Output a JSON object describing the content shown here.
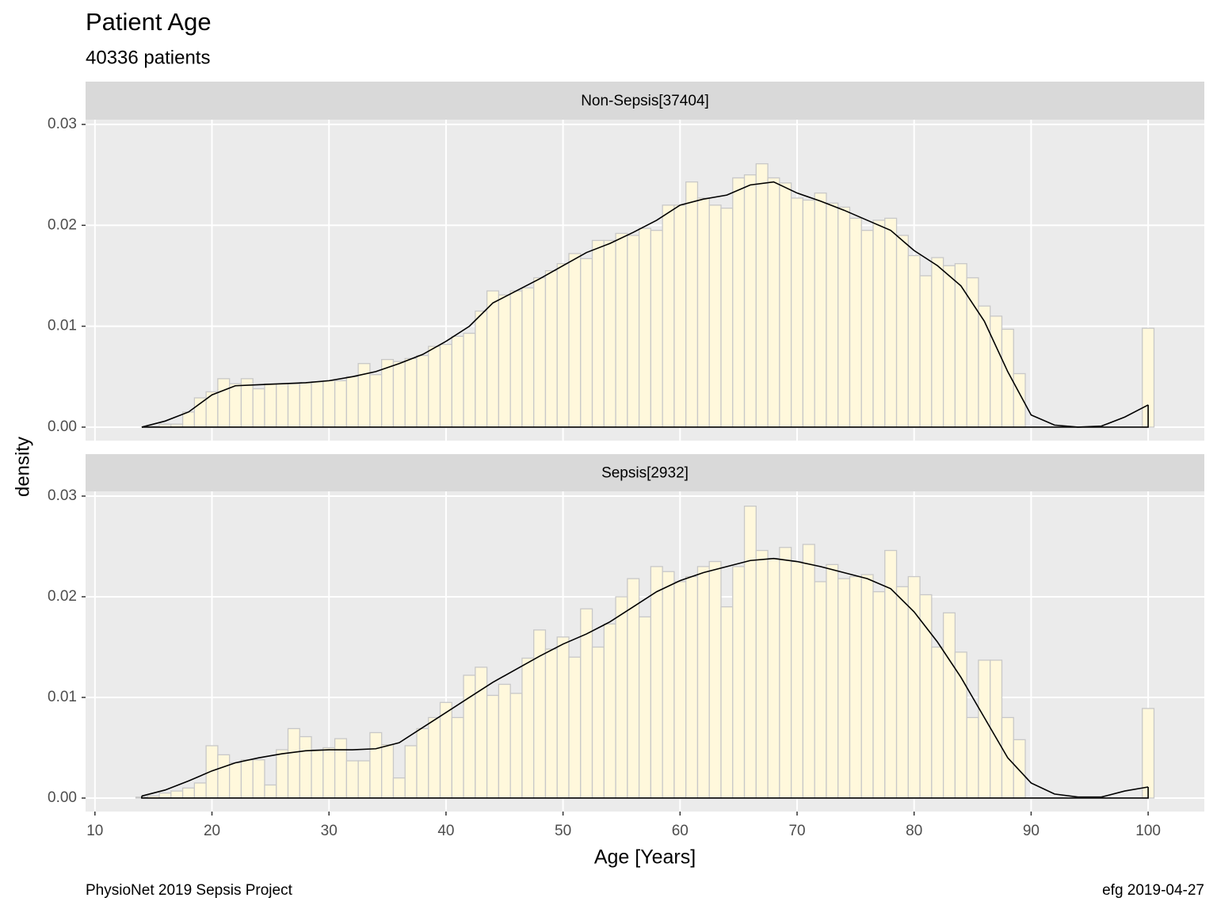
{
  "title": "Patient Age",
  "subtitle": "40336 patients",
  "ylabel": "density",
  "xlabel": "Age [Years]",
  "caption_left": "PhysioNet 2019 Sepsis Project",
  "caption_right": "efg 2019-04-27",
  "chart_data": [
    {
      "type": "histogram",
      "title": "Non-Sepsis[37404]",
      "color": "#FFF8DC",
      "edgecolor": "#C8C8C8",
      "grid": true,
      "bins": [
        13.5,
        14.5,
        15.5,
        16.5,
        17.5,
        18.5,
        19.5,
        20.5,
        21.5,
        22.5,
        23.5,
        24.5,
        25.5,
        26.5,
        27.5,
        28.5,
        29.5,
        30.5,
        31.5,
        32.5,
        33.5,
        34.5,
        35.5,
        36.5,
        37.5,
        38.5,
        39.5,
        40.5,
        41.5,
        42.5,
        43.5,
        44.5,
        45.5,
        46.5,
        47.5,
        48.5,
        49.5,
        50.5,
        51.5,
        52.5,
        53.5,
        54.5,
        55.5,
        56.5,
        57.5,
        58.5,
        59.5,
        60.5,
        61.5,
        62.5,
        63.5,
        64.5,
        65.5,
        66.5,
        67.5,
        68.5,
        69.5,
        70.5,
        71.5,
        72.5,
        73.5,
        74.5,
        75.5,
        76.5,
        77.5,
        78.5,
        79.5,
        80.5,
        81.5,
        82.5,
        83.5,
        84.5,
        85.5,
        86.5,
        87.5,
        88.5,
        89.5,
        90.5,
        91.5,
        92.5,
        93.5,
        94.5,
        95.5,
        96.5,
        97.5,
        98.5,
        99.5,
        100.5
      ],
      "values": [
        0,
        0.0001,
        0.0003,
        0.0003,
        0.0015,
        0.0029,
        0.0035,
        0.0048,
        0.0043,
        0.0048,
        0.0038,
        0.0043,
        0.0043,
        0.0043,
        0.0044,
        0.0045,
        0.0046,
        0.0046,
        0.005,
        0.0063,
        0.0052,
        0.0067,
        0.0065,
        0.0068,
        0.0071,
        0.008,
        0.0082,
        0.009,
        0.0093,
        0.0115,
        0.0135,
        0.0131,
        0.0135,
        0.0138,
        0.0148,
        0.0155,
        0.0162,
        0.0172,
        0.0167,
        0.0185,
        0.0185,
        0.0192,
        0.019,
        0.0197,
        0.0195,
        0.022,
        0.022,
        0.0243,
        0.0227,
        0.022,
        0.0217,
        0.0247,
        0.025,
        0.0261,
        0.0247,
        0.0242,
        0.0227,
        0.0225,
        0.0232,
        0.0222,
        0.0218,
        0.0207,
        0.0195,
        0.0205,
        0.0207,
        0.019,
        0.017,
        0.015,
        0.0168,
        0.016,
        0.0162,
        0.0148,
        0.012,
        0.011,
        0.0097,
        0.0053,
        0,
        0,
        0,
        0,
        0,
        0,
        0,
        0,
        0,
        0,
        0.0098
      ],
      "density": {
        "color": "#000000",
        "x": [
          14,
          16,
          18,
          20,
          22,
          24,
          26,
          28,
          30,
          32,
          34,
          36,
          38,
          40,
          42,
          44,
          46,
          48,
          50,
          52,
          54,
          56,
          58,
          60,
          62,
          64,
          66,
          68,
          70,
          72,
          74,
          76,
          78,
          80,
          82,
          84,
          86,
          88,
          90,
          92,
          94,
          96,
          98,
          100
        ],
        "values": [
          0,
          0.0006,
          0.0015,
          0.0032,
          0.0041,
          0.0042,
          0.0043,
          0.0044,
          0.0046,
          0.005,
          0.0055,
          0.0063,
          0.0072,
          0.0085,
          0.01,
          0.0123,
          0.0135,
          0.0147,
          0.016,
          0.0173,
          0.0182,
          0.0193,
          0.0205,
          0.022,
          0.0226,
          0.023,
          0.024,
          0.0243,
          0.0232,
          0.0224,
          0.0215,
          0.0205,
          0.0195,
          0.0175,
          0.016,
          0.014,
          0.0105,
          0.0055,
          0.0012,
          0.0002,
          0,
          0.0001,
          0.001,
          0.0022
        ]
      },
      "xlim": [
        9.2,
        104.8
      ],
      "xticks": [
        10,
        20,
        30,
        40,
        50,
        60,
        70,
        80,
        90,
        100
      ],
      "ylim": [
        -0.00134,
        0.03047
      ],
      "yticks": [
        {
          "value": 0,
          "label": "0.00"
        },
        {
          "value": 0.01,
          "label": "0.01"
        },
        {
          "value": 0.02,
          "label": "0.02"
        },
        {
          "value": 0.03,
          "label": "0.03"
        }
      ]
    },
    {
      "type": "histogram",
      "title": "Sepsis[2932]",
      "color": "#FFF8DC",
      "edgecolor": "#C8C8C8",
      "grid": true,
      "bins": [
        13.5,
        14.5,
        15.5,
        16.5,
        17.5,
        18.5,
        19.5,
        20.5,
        21.5,
        22.5,
        23.5,
        24.5,
        25.5,
        26.5,
        27.5,
        28.5,
        29.5,
        30.5,
        31.5,
        32.5,
        33.5,
        34.5,
        35.5,
        36.5,
        37.5,
        38.5,
        39.5,
        40.5,
        41.5,
        42.5,
        43.5,
        44.5,
        45.5,
        46.5,
        47.5,
        48.5,
        49.5,
        50.5,
        51.5,
        52.5,
        53.5,
        54.5,
        55.5,
        56.5,
        57.5,
        58.5,
        59.5,
        60.5,
        61.5,
        62.5,
        63.5,
        64.5,
        65.5,
        66.5,
        67.5,
        68.5,
        69.5,
        70.5,
        71.5,
        72.5,
        73.5,
        74.5,
        75.5,
        76.5,
        77.5,
        78.5,
        79.5,
        80.5,
        81.5,
        82.5,
        83.5,
        84.5,
        85.5,
        86.5,
        87.5,
        88.5,
        89.5,
        90.5,
        91.5,
        92.5,
        93.5,
        94.5,
        95.5,
        96.5,
        97.5,
        98.5,
        99.5,
        100.5
      ],
      "values": [
        0.0001,
        0.0002,
        0.0005,
        0.0007,
        0.001,
        0.0015,
        0.0052,
        0.0043,
        0.0035,
        0.0038,
        0.0038,
        0.0013,
        0.0048,
        0.0069,
        0.0061,
        0.0048,
        0.005,
        0.0059,
        0.0037,
        0.0037,
        0.0065,
        0.0053,
        0.002,
        0.0052,
        0.0069,
        0.008,
        0.0095,
        0.008,
        0.0122,
        0.013,
        0.0102,
        0.0113,
        0.0104,
        0.0139,
        0.0167,
        0.0148,
        0.016,
        0.014,
        0.0188,
        0.015,
        0.0173,
        0.02,
        0.0218,
        0.018,
        0.023,
        0.0225,
        0.0215,
        0.022,
        0.023,
        0.0235,
        0.019,
        0.023,
        0.029,
        0.0246,
        0.0238,
        0.0249,
        0.0235,
        0.0252,
        0.0215,
        0.0232,
        0.0218,
        0.022,
        0.0222,
        0.0205,
        0.0246,
        0.021,
        0.022,
        0.0202,
        0.015,
        0.0184,
        0.0145,
        0.008,
        0.0137,
        0.0137,
        0.008,
        0.0058,
        0,
        0,
        0,
        0,
        0,
        0,
        0,
        0,
        0,
        0,
        0.0089
      ],
      "density": {
        "color": "#000000",
        "x": [
          14,
          16,
          18,
          20,
          22,
          24,
          26,
          28,
          30,
          32,
          34,
          36,
          38,
          40,
          42,
          44,
          46,
          48,
          50,
          52,
          54,
          56,
          58,
          60,
          62,
          64,
          66,
          68,
          70,
          72,
          74,
          76,
          78,
          80,
          82,
          84,
          86,
          88,
          90,
          92,
          94,
          96,
          98,
          100
        ],
        "values": [
          0.0002,
          0.0008,
          0.0017,
          0.0027,
          0.0035,
          0.004,
          0.0044,
          0.0047,
          0.0048,
          0.0048,
          0.0049,
          0.0055,
          0.007,
          0.0085,
          0.01,
          0.0115,
          0.0128,
          0.0141,
          0.0153,
          0.0163,
          0.0175,
          0.019,
          0.0205,
          0.0216,
          0.0224,
          0.023,
          0.0236,
          0.0238,
          0.0235,
          0.023,
          0.0224,
          0.0218,
          0.0208,
          0.0185,
          0.0155,
          0.012,
          0.008,
          0.004,
          0.0015,
          0.0004,
          0.0001,
          0.0001,
          0.0007,
          0.0011
        ]
      },
      "xlim": [
        9.2,
        104.8
      ],
      "xticks": [
        10,
        20,
        30,
        40,
        50,
        60,
        70,
        80,
        90,
        100
      ],
      "ylim": [
        -0.00134,
        0.03047
      ],
      "yticks": [
        {
          "value": 0,
          "label": "0.00"
        },
        {
          "value": 0.01,
          "label": "0.01"
        },
        {
          "value": 0.02,
          "label": "0.02"
        },
        {
          "value": 0.03,
          "label": "0.03"
        }
      ]
    }
  ]
}
